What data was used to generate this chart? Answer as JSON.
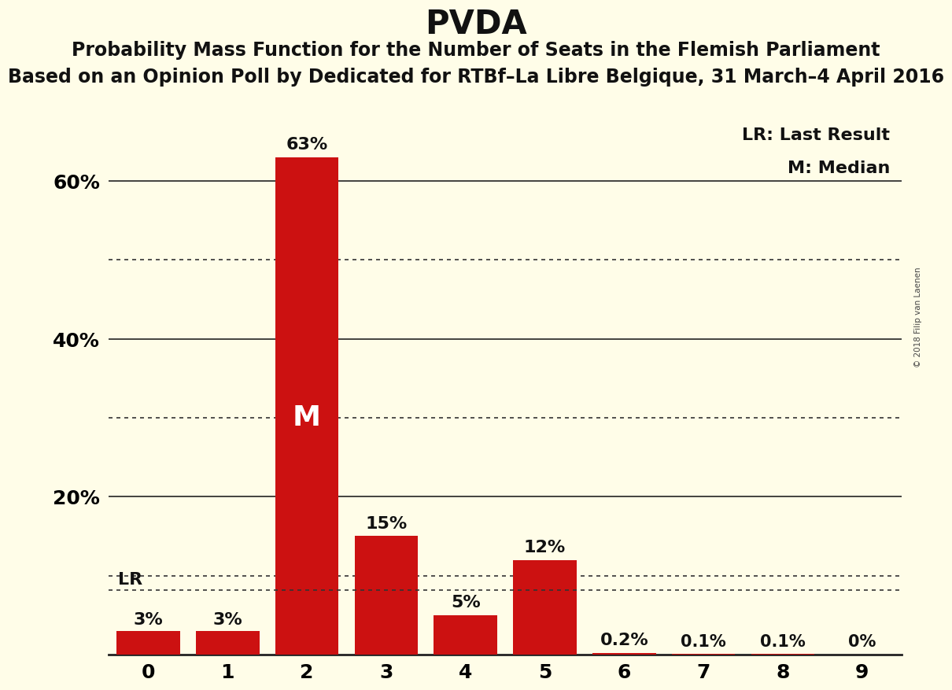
{
  "title": "PVDA",
  "subtitle1": "Probability Mass Function for the Number of Seats in the Flemish Parliament",
  "subtitle2": "Based on an Opinion Poll by Dedicated for RTBf–La Libre Belgique, 31 March–4 April 2016",
  "copyright": "© 2018 Filip van Laenen",
  "categories": [
    0,
    1,
    2,
    3,
    4,
    5,
    6,
    7,
    8,
    9
  ],
  "values": [
    0.03,
    0.03,
    0.63,
    0.15,
    0.05,
    0.12,
    0.002,
    0.001,
    0.001,
    0.0
  ],
  "labels": [
    "3%",
    "3%",
    "63%",
    "15%",
    "5%",
    "12%",
    "0.2%",
    "0.1%",
    "0.1%",
    "0%"
  ],
  "bar_color": "#CC1111",
  "background_color": "#FFFDE8",
  "lr_value": 0.082,
  "lr_bar": 0,
  "median_bar": 2,
  "ylim": [
    0,
    0.7
  ],
  "yticks": [
    0.0,
    0.2,
    0.4,
    0.6
  ],
  "ytick_labels": [
    "",
    "20%",
    "40%",
    "60%"
  ],
  "dotted_grid": [
    0.1,
    0.3,
    0.5
  ],
  "solid_grid": [
    0.2,
    0.4,
    0.6
  ],
  "title_fontsize": 30,
  "subtitle1_fontsize": 17,
  "subtitle2_fontsize": 17,
  "axis_fontsize": 18,
  "bar_label_fontsize": 16,
  "legend_fontsize": 16,
  "median_fontsize": 26
}
